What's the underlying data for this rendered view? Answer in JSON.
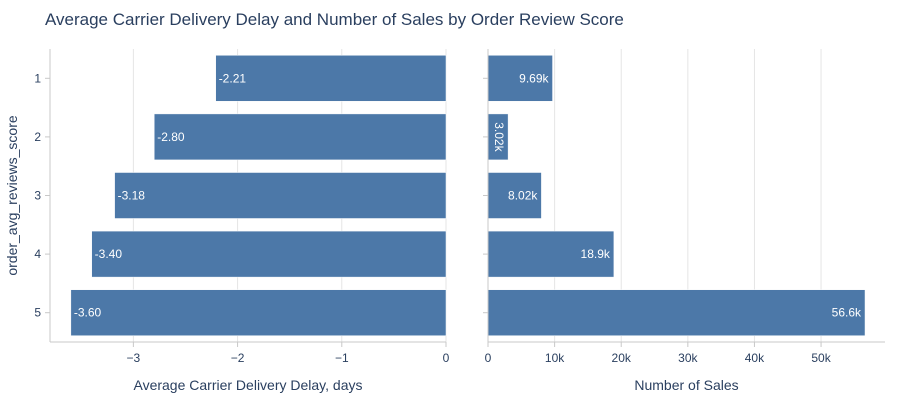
{
  "chart_data": {
    "title": "Average Carrier Delivery Delay and Number of Sales by Order Review Score",
    "ylabel": "order_avg_reviews_score",
    "categories": [
      "1",
      "2",
      "3",
      "4",
      "5"
    ],
    "bar_color": "#4c78a8",
    "grid": true,
    "panels": [
      {
        "type": "bar",
        "orientation": "horizontal",
        "xlabel": "Average Carrier Delivery Delay, days",
        "xlim": [
          -3.8,
          0
        ],
        "xticks": [
          -3,
          -2,
          -1,
          0
        ],
        "xtick_labels": [
          "−3",
          "−2",
          "−1",
          "0"
        ],
        "values": [
          -2.21,
          -2.8,
          -3.18,
          -3.4,
          -3.6
        ],
        "data_labels": [
          "-2.21",
          "-2.80",
          "-3.18",
          "-3.40",
          "-3.60"
        ]
      },
      {
        "type": "bar",
        "orientation": "horizontal",
        "xlabel": "Number of Sales",
        "xlim": [
          0,
          59600
        ],
        "xticks": [
          0,
          10000,
          20000,
          30000,
          40000,
          50000
        ],
        "xtick_labels": [
          "0",
          "10k",
          "20k",
          "30k",
          "40k",
          "50k"
        ],
        "values": [
          9690,
          3020,
          8020,
          18900,
          56600
        ],
        "data_labels": [
          "9.69k",
          "3.02k",
          "8.02k",
          "18.9k",
          "56.6k"
        ]
      }
    ]
  }
}
